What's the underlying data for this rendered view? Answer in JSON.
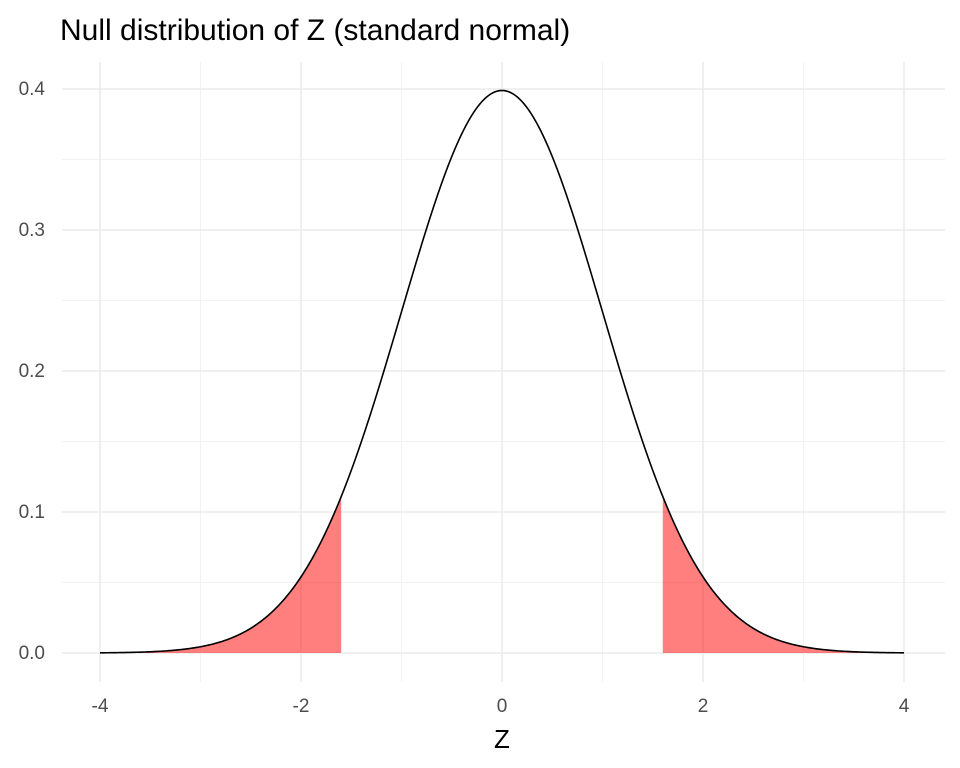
{
  "chart_data": {
    "type": "area",
    "title": "Null distribution of Z (standard normal)",
    "xlabel": "Z",
    "ylabel": "",
    "xlim": [
      -4,
      4
    ],
    "ylim": [
      0,
      0.4
    ],
    "x_ticks": [
      -4,
      -2,
      0,
      2,
      4
    ],
    "y_ticks": [
      0.0,
      0.1,
      0.2,
      0.3,
      0.4
    ],
    "x_tick_labels": [
      "-4",
      "-2",
      "0",
      "2",
      "4"
    ],
    "y_tick_labels": [
      "0.0",
      "0.1",
      "0.2",
      "0.3",
      "0.4"
    ],
    "grid": true,
    "legend": "none",
    "series": [
      {
        "type": "line",
        "function": "standard normal density",
        "x": [
          -4,
          -3.5,
          -3,
          -2.5,
          -2,
          -1.5,
          -1,
          -0.5,
          0,
          0.5,
          1,
          1.5,
          2,
          2.5,
          3,
          3.5,
          4
        ],
        "values": [
          0.0001,
          0.0009,
          0.0044,
          0.0175,
          0.054,
          0.1295,
          0.242,
          0.3521,
          0.3989,
          0.3521,
          0.242,
          0.1295,
          0.054,
          0.0175,
          0.0044,
          0.0009,
          0.0001
        ],
        "color": "#000000"
      }
    ],
    "shaded_regions": [
      {
        "x_from": -4,
        "x_to": -1.6,
        "color": "#ff0000",
        "opacity": 0.5
      },
      {
        "x_from": 1.6,
        "x_to": 4,
        "color": "#ff0000",
        "opacity": 0.5
      }
    ]
  }
}
